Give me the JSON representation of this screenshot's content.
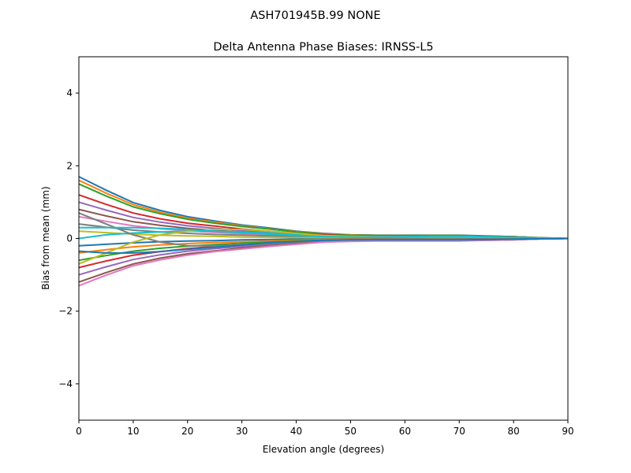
{
  "suptitle": "ASH701945B.99   NONE",
  "chart_data": {
    "type": "line",
    "title": "Delta Antenna Phase Biases: IRNSS-L5",
    "xlabel": "Elevation angle (degrees)",
    "ylabel": "Bias from mean (mm)",
    "xlim": [
      0,
      90
    ],
    "ylim": [
      -5,
      5
    ],
    "xticks": [
      0,
      10,
      20,
      30,
      40,
      50,
      60,
      70,
      80,
      90
    ],
    "yticks": [
      -4,
      -2,
      0,
      2,
      4
    ],
    "ytick_labels": [
      "−4",
      "−2",
      "0",
      "2",
      "4"
    ],
    "grid": false,
    "legend": "none",
    "colors": [
      "#1f77b4",
      "#ff7f0e",
      "#2ca02c",
      "#d62728",
      "#9467bd",
      "#8c564b",
      "#e377c2",
      "#7f7f7f",
      "#bcbd22",
      "#17becf"
    ],
    "x": [
      0,
      5,
      10,
      15,
      20,
      25,
      30,
      35,
      40,
      45,
      50,
      55,
      60,
      65,
      70,
      75,
      80,
      85,
      90
    ],
    "series": [
      {
        "values": [
          1.7,
          1.33,
          0.99,
          0.77,
          0.6,
          0.48,
          0.37,
          0.29,
          0.2,
          0.14,
          0.1,
          0.09,
          0.09,
          0.09,
          0.09,
          0.07,
          0.05,
          0.02,
          0
        ]
      },
      {
        "values": [
          1.6,
          1.25,
          0.93,
          0.72,
          0.56,
          0.45,
          0.35,
          0.27,
          0.19,
          0.13,
          0.1,
          0.08,
          0.08,
          0.08,
          0.08,
          0.06,
          0.05,
          0.02,
          0
        ]
      },
      {
        "values": [
          1.5,
          1.17,
          0.87,
          0.68,
          0.53,
          0.42,
          0.33,
          0.26,
          0.18,
          0.12,
          0.09,
          0.08,
          0.08,
          0.08,
          0.08,
          0.06,
          0.05,
          0.02,
          0
        ]
      },
      {
        "values": [
          1.2,
          0.94,
          0.7,
          0.54,
          0.42,
          0.34,
          0.26,
          0.2,
          0.14,
          0.1,
          0.07,
          0.06,
          0.06,
          0.06,
          0.06,
          0.05,
          0.04,
          0.01,
          0
        ]
      },
      {
        "values": [
          1.0,
          0.78,
          0.58,
          0.45,
          0.35,
          0.28,
          0.22,
          0.17,
          0.12,
          0.08,
          0.06,
          0.05,
          0.05,
          0.05,
          0.05,
          0.04,
          0.03,
          0.01,
          0
        ]
      },
      {
        "values": [
          0.8,
          0.62,
          0.46,
          0.36,
          0.28,
          0.22,
          0.18,
          0.14,
          0.1,
          0.06,
          0.05,
          0.04,
          0.04,
          0.04,
          0.04,
          0.03,
          0.02,
          0.01,
          0
        ]
      },
      {
        "values": [
          0.6,
          0.47,
          0.35,
          0.27,
          0.21,
          0.17,
          0.13,
          0.1,
          0.07,
          0.05,
          0.04,
          0.03,
          0.03,
          0.03,
          0.03,
          0.02,
          0.02,
          0.01,
          0
        ]
      },
      {
        "values": [
          0.4,
          0.31,
          0.23,
          0.18,
          0.14,
          0.11,
          0.09,
          0.07,
          0.05,
          0.03,
          0.02,
          0.02,
          0.02,
          0.02,
          0.02,
          0.02,
          0.01,
          0,
          0
        ]
      },
      {
        "values": [
          0.2,
          0.16,
          0.12,
          0.09,
          0.07,
          0.06,
          0.04,
          0.03,
          0.02,
          0.02,
          0.01,
          0.01,
          0.01,
          0.01,
          0.01,
          0.01,
          0.01,
          0,
          0
        ]
      },
      {
        "values": [
          0,
          0.1,
          0.15,
          0.18,
          0.2,
          0.2,
          0.18,
          0.15,
          0.1,
          0.06,
          0.04,
          0.03,
          0.03,
          0.03,
          0.03,
          0.02,
          0.01,
          0,
          0
        ]
      },
      {
        "values": [
          -0.2,
          -0.16,
          -0.12,
          -0.09,
          -0.07,
          -0.06,
          -0.04,
          -0.03,
          -0.02,
          -0.02,
          -0.01,
          -0.01,
          -0.01,
          -0.01,
          -0.01,
          -0.01,
          -0.01,
          0,
          0
        ]
      },
      {
        "values": [
          -0.4,
          -0.31,
          -0.23,
          -0.18,
          -0.14,
          -0.11,
          -0.09,
          -0.07,
          -0.05,
          -0.03,
          -0.02,
          -0.02,
          -0.02,
          -0.02,
          -0.02,
          -0.02,
          -0.01,
          0,
          0
        ]
      },
      {
        "values": [
          -0.6,
          -0.47,
          -0.35,
          -0.27,
          -0.21,
          -0.17,
          -0.13,
          -0.1,
          -0.07,
          -0.05,
          -0.04,
          -0.03,
          -0.03,
          -0.03,
          -0.03,
          -0.02,
          -0.02,
          -0.01,
          0
        ]
      },
      {
        "values": [
          -0.8,
          -0.62,
          -0.46,
          -0.36,
          -0.28,
          -0.22,
          -0.18,
          -0.14,
          -0.1,
          -0.06,
          -0.05,
          -0.04,
          -0.04,
          -0.04,
          -0.04,
          -0.03,
          -0.02,
          -0.01,
          0
        ]
      },
      {
        "values": [
          -1.0,
          -0.78,
          -0.58,
          -0.45,
          -0.35,
          -0.28,
          -0.22,
          -0.17,
          -0.12,
          -0.08,
          -0.06,
          -0.05,
          -0.05,
          -0.05,
          -0.05,
          -0.04,
          -0.03,
          -0.01,
          0
        ]
      },
      {
        "values": [
          -1.2,
          -0.94,
          -0.7,
          -0.54,
          -0.42,
          -0.34,
          -0.26,
          -0.2,
          -0.14,
          -0.1,
          -0.07,
          -0.06,
          -0.06,
          -0.06,
          -0.06,
          -0.05,
          -0.04,
          -0.01,
          0
        ]
      },
      {
        "values": [
          -1.3,
          -1.01,
          -0.75,
          -0.59,
          -0.46,
          -0.36,
          -0.29,
          -0.22,
          -0.16,
          -0.1,
          -0.08,
          -0.07,
          -0.07,
          -0.07,
          -0.07,
          -0.05,
          -0.04,
          -0.01,
          0
        ]
      },
      {
        "values": [
          0.7,
          0.4,
          0.1,
          -0.1,
          -0.2,
          -0.2,
          -0.18,
          -0.15,
          -0.1,
          -0.06,
          -0.04,
          -0.03,
          -0.03,
          -0.03,
          -0.03,
          -0.02,
          -0.01,
          0,
          0
        ]
      },
      {
        "values": [
          -0.7,
          -0.4,
          -0.1,
          0.1,
          0.2,
          0.25,
          0.25,
          0.2,
          0.14,
          0.08,
          0.06,
          0.05,
          0.05,
          0.05,
          0.05,
          0.04,
          0.03,
          0.01,
          0
        ]
      },
      {
        "values": [
          0.3,
          0.3,
          0.3,
          0.28,
          0.25,
          0.2,
          0.16,
          0.12,
          0.08,
          0.05,
          0.04,
          0.04,
          0.05,
          0.06,
          0.06,
          0.05,
          0.03,
          0.01,
          0
        ]
      },
      {
        "values": [
          -0.35,
          -0.4,
          -0.4,
          -0.36,
          -0.3,
          -0.24,
          -0.18,
          -0.12,
          -0.08,
          -0.05,
          -0.04,
          -0.04,
          -0.04,
          -0.04,
          -0.04,
          -0.03,
          -0.02,
          -0.01,
          0
        ]
      }
    ]
  }
}
